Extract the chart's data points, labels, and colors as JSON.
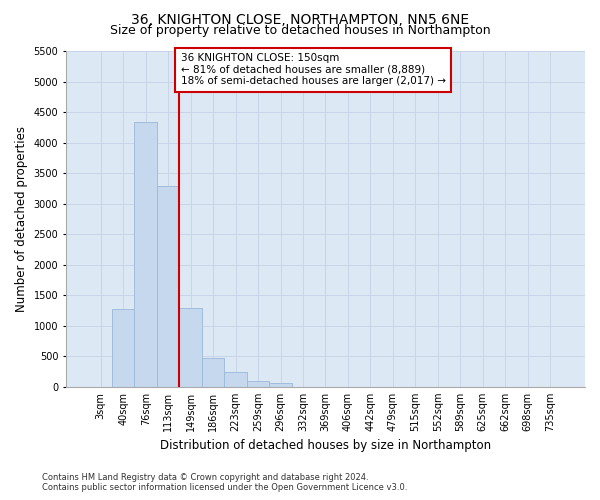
{
  "title": "36, KNIGHTON CLOSE, NORTHAMPTON, NN5 6NE",
  "subtitle": "Size of property relative to detached houses in Northampton",
  "xlabel": "Distribution of detached houses by size in Northampton",
  "ylabel": "Number of detached properties",
  "footnote": "Contains HM Land Registry data © Crown copyright and database right 2024.\nContains public sector information licensed under the Open Government Licence v3.0.",
  "categories": [
    "3sqm",
    "40sqm",
    "76sqm",
    "113sqm",
    "149sqm",
    "186sqm",
    "223sqm",
    "259sqm",
    "296sqm",
    "332sqm",
    "369sqm",
    "406sqm",
    "442sqm",
    "479sqm",
    "515sqm",
    "552sqm",
    "589sqm",
    "625sqm",
    "662sqm",
    "698sqm",
    "735sqm"
  ],
  "values": [
    0,
    1280,
    4350,
    3300,
    1290,
    480,
    235,
    90,
    65,
    0,
    0,
    0,
    0,
    0,
    0,
    0,
    0,
    0,
    0,
    0,
    0
  ],
  "bar_color": "#c5d8ee",
  "bar_edge_color": "#9ab8d8",
  "grid_color": "#c8d4e8",
  "plot_bg_color": "#dde8f5",
  "fig_bg_color": "#ffffff",
  "vline_color": "#cc0000",
  "annotation_text": "36 KNIGHTON CLOSE: 150sqm\n← 81% of detached houses are smaller (8,889)\n18% of semi-detached houses are larger (2,017) →",
  "annotation_box_edge_color": "#cc0000",
  "ylim": [
    0,
    5500
  ],
  "yticks": [
    0,
    500,
    1000,
    1500,
    2000,
    2500,
    3000,
    3500,
    4000,
    4500,
    5000,
    5500
  ],
  "title_fontsize": 10,
  "subtitle_fontsize": 9,
  "label_fontsize": 8.5,
  "tick_fontsize": 7,
  "annotation_fontsize": 7.5,
  "footnote_fontsize": 6
}
